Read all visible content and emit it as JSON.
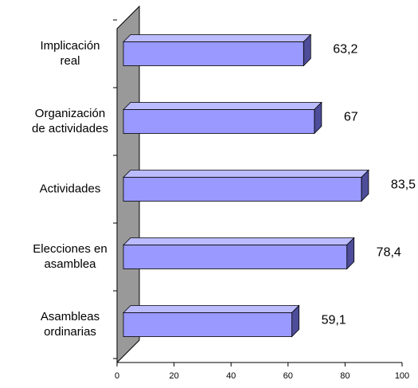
{
  "chart_data": {
    "type": "bar",
    "orientation": "horizontal",
    "categories": [
      "Implicación\nreal",
      "Organización\nde actividades",
      "Actividades",
      "Elecciones en\nasamblea",
      "Asambleas\nordinarias"
    ],
    "values": [
      63.2,
      67,
      83.5,
      78.4,
      59.1
    ],
    "value_labels": [
      "63,2",
      "67",
      "83,5",
      "78,4",
      "59,1"
    ],
    "color": "#9999ff",
    "xlim": [
      0,
      100
    ],
    "xticks": [
      0,
      20,
      40,
      60,
      80,
      100
    ]
  }
}
